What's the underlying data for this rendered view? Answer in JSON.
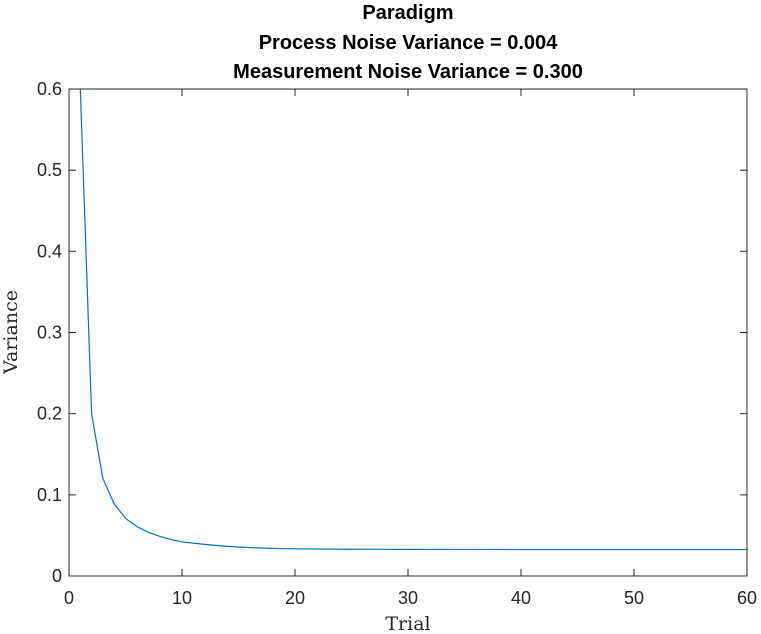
{
  "chart_data": {
    "type": "line",
    "title": [
      "Paradigm",
      "Process Noise Variance = 0.004",
      "Measurement Noise Variance = 0.300"
    ],
    "xlabel": "Trial",
    "ylabel": "Variance",
    "xlim": [
      0,
      60
    ],
    "ylim": [
      0,
      0.6
    ],
    "xticks": [
      0,
      10,
      20,
      30,
      40,
      50,
      60
    ],
    "yticks": [
      0,
      0.1,
      0.2,
      0.3,
      0.4,
      0.5,
      0.6
    ],
    "xtick_labels": [
      "0",
      "10",
      "20",
      "30",
      "40",
      "50",
      "60"
    ],
    "ytick_labels": [
      "0",
      "0.1",
      "0.2",
      "0.3",
      "0.4",
      "0.5",
      "0.6"
    ],
    "grid": false,
    "series": [
      {
        "color": "#0072BD",
        "x": [
          1,
          2,
          3,
          4,
          5,
          6,
          7,
          8,
          9,
          10,
          12,
          14,
          16,
          18,
          20,
          25,
          30,
          35,
          40,
          45,
          50,
          55,
          60
        ],
        "values": [
          0.6,
          0.2,
          0.12,
          0.089,
          0.071,
          0.061,
          0.054,
          0.049,
          0.045,
          0.042,
          0.039,
          0.0365,
          0.035,
          0.034,
          0.0335,
          0.033,
          0.0328,
          0.0327,
          0.0326,
          0.0326,
          0.0326,
          0.0326,
          0.0326
        ]
      }
    ]
  }
}
